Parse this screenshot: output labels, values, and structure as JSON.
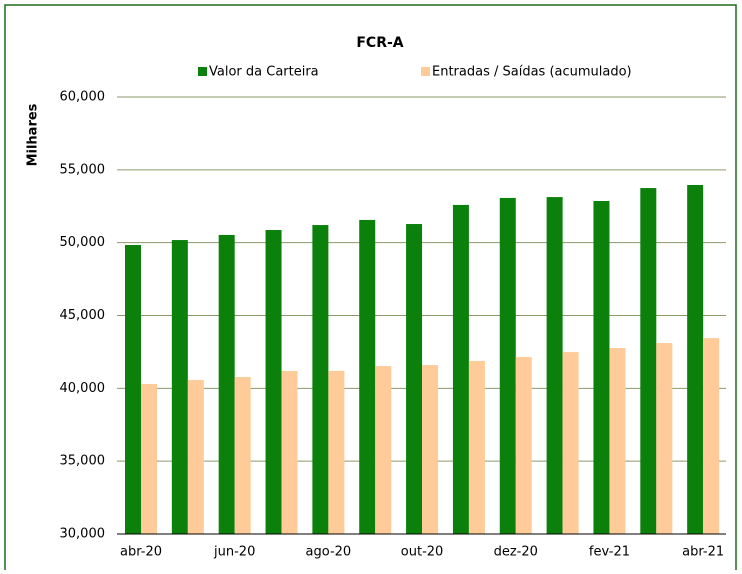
{
  "chart_data": {
    "type": "bar",
    "title": "FCR-A",
    "y_label": "Milhares",
    "categories": [
      "abr-20",
      null,
      "jun-20",
      null,
      "ago-20",
      null,
      "out-20",
      null,
      "dez-20",
      null,
      "fev-21",
      null,
      "abr-21"
    ],
    "series": [
      {
        "name": "Valor da Carteira",
        "color": "#0b800b",
        "values": [
          49840,
          50180,
          50530,
          50870,
          51210,
          51560,
          51280,
          52590,
          53070,
          53130,
          52860,
          53750,
          53960
        ]
      },
      {
        "name": "Entradas / Saídas (acumulado)",
        "color": "#ffcc99",
        "values": [
          40300,
          40570,
          40780,
          41190,
          41200,
          41530,
          41600,
          41880,
          42150,
          42490,
          42770,
          43110,
          43450
        ]
      }
    ],
    "ylim": [
      30000,
      60000
    ],
    "yticks": [
      {
        "value": 30000,
        "label": "30,000"
      },
      {
        "value": 35000,
        "label": "35,000"
      },
      {
        "value": 40000,
        "label": "40,000"
      },
      {
        "value": 45000,
        "label": "45,000"
      },
      {
        "value": 50000,
        "label": "50,000"
      },
      {
        "value": 55000,
        "label": "55,000"
      },
      {
        "value": 60000,
        "label": "60,000"
      }
    ],
    "grid": true,
    "legend": "top"
  }
}
